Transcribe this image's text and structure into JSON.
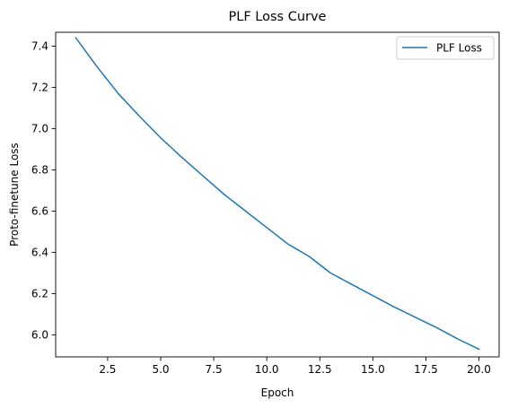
{
  "chart_data": {
    "type": "line",
    "title": "PLF Loss Curve",
    "xlabel": "Epoch",
    "ylabel": "Proto-finetune Loss",
    "xlim": [
      0.05,
      20.95
    ],
    "ylim": [
      5.893,
      7.467
    ],
    "xticks": [
      2.5,
      5.0,
      7.5,
      10.0,
      12.5,
      15.0,
      17.5,
      20.0
    ],
    "xtick_labels": [
      "2.5",
      "5.0",
      "7.5",
      "10.0",
      "12.5",
      "15.0",
      "17.5",
      "20.0"
    ],
    "yticks": [
      6.0,
      6.2,
      6.4,
      6.6,
      6.8,
      7.0,
      7.2,
      7.4
    ],
    "ytick_labels": [
      "6.0",
      "6.2",
      "6.4",
      "6.6",
      "6.8",
      "7.0",
      "7.2",
      "7.4"
    ],
    "grid": false,
    "legend": "top-right",
    "series": [
      {
        "name": "PLF Loss",
        "color": "#1f77b4",
        "x": [
          1,
          2,
          3,
          4,
          5,
          6,
          7,
          8,
          9,
          10,
          11,
          12,
          13,
          14,
          15,
          16,
          17,
          18,
          19,
          20
        ],
        "values": [
          7.44,
          7.3,
          7.17,
          7.06,
          6.955,
          6.86,
          6.77,
          6.68,
          6.6,
          6.52,
          6.44,
          6.38,
          6.3,
          6.245,
          6.19,
          6.135,
          6.085,
          6.035,
          5.98,
          5.93
        ]
      }
    ]
  }
}
